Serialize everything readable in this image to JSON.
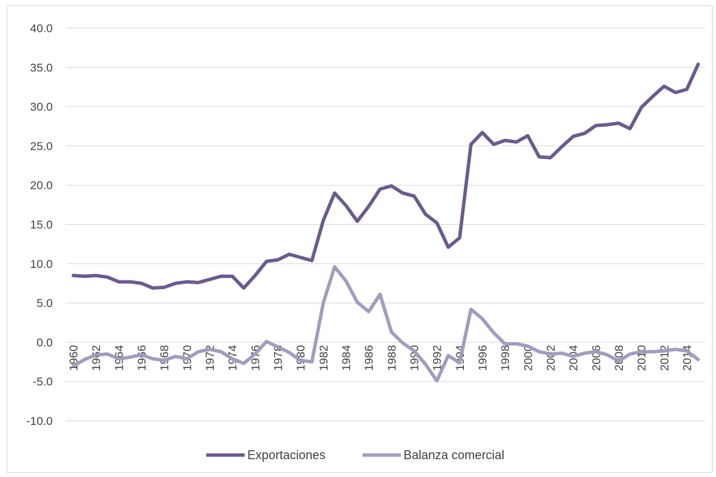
{
  "chart_data": {
    "type": "line",
    "title": "",
    "xlabel": "",
    "ylabel": "",
    "ylim": [
      -10,
      40
    ],
    "yticks": [
      "40.0",
      "35.0",
      "30.0",
      "25.0",
      "20.0",
      "15.0",
      "10.0",
      "5.0",
      "0.0",
      "-5.0",
      "-10.0"
    ],
    "grid": true,
    "legend_position": "bottom",
    "x": [
      1960,
      1961,
      1962,
      1963,
      1964,
      1965,
      1966,
      1967,
      1968,
      1969,
      1970,
      1971,
      1972,
      1973,
      1974,
      1975,
      1976,
      1977,
      1978,
      1979,
      1980,
      1981,
      1982,
      1983,
      1984,
      1985,
      1986,
      1987,
      1988,
      1989,
      1990,
      1991,
      1992,
      1993,
      1994,
      1995,
      1996,
      1997,
      1998,
      1999,
      2000,
      2001,
      2002,
      2003,
      2004,
      2005,
      2006,
      2007,
      2008,
      2009,
      2010,
      2011,
      2012,
      2013,
      2014,
      2015
    ],
    "xtick_labels": [
      "1960",
      "1962",
      "1964",
      "1966",
      "1968",
      "1970",
      "1972",
      "1974",
      "1976",
      "1978",
      "1980",
      "1982",
      "1984",
      "1986",
      "1988",
      "1990",
      "1992",
      "1994",
      "1996",
      "1998",
      "2000",
      "2002",
      "2004",
      "2006",
      "2008",
      "2010",
      "2012",
      "2014"
    ],
    "series": [
      {
        "name": "Exportaciones",
        "color": "#6b5a8e",
        "values": [
          8.5,
          8.4,
          8.5,
          8.3,
          7.7,
          7.7,
          7.5,
          6.9,
          7.0,
          7.5,
          7.7,
          7.6,
          8.0,
          8.4,
          8.4,
          6.9,
          8.5,
          10.3,
          10.5,
          11.2,
          10.8,
          10.4,
          15.5,
          19.0,
          17.4,
          15.4,
          17.3,
          19.5,
          19.9,
          19.0,
          18.6,
          16.3,
          15.2,
          12.1,
          13.3,
          25.2,
          26.7,
          25.2,
          25.7,
          25.5,
          26.3,
          23.6,
          23.5,
          24.9,
          26.2,
          26.6,
          27.6,
          27.7,
          27.9,
          27.2,
          29.9,
          31.3,
          32.6,
          31.8,
          32.2,
          35.4
        ]
      },
      {
        "name": "Balanza comercial",
        "color": "#a49bbe",
        "values": [
          -3.0,
          -2.2,
          -1.6,
          -1.5,
          -2.1,
          -1.9,
          -1.6,
          -2.1,
          -2.3,
          -1.8,
          -2.1,
          -1.2,
          -0.9,
          -1.2,
          -2.1,
          -2.7,
          -1.5,
          0.1,
          -0.6,
          -1.3,
          -2.3,
          -2.5,
          5.0,
          9.6,
          7.8,
          5.1,
          3.9,
          6.1,
          1.3,
          -0.1,
          -1.1,
          -2.8,
          -4.9,
          -1.7,
          -2.6,
          4.2,
          3.0,
          1.2,
          -0.2,
          -0.2,
          -0.5,
          -1.2,
          -1.5,
          -1.4,
          -1.8,
          -1.4,
          -1.2,
          -1.6,
          -2.4,
          -1.5,
          -1.2,
          -1.2,
          -1.1,
          -0.9,
          -1.1,
          -2.2
        ]
      }
    ]
  }
}
